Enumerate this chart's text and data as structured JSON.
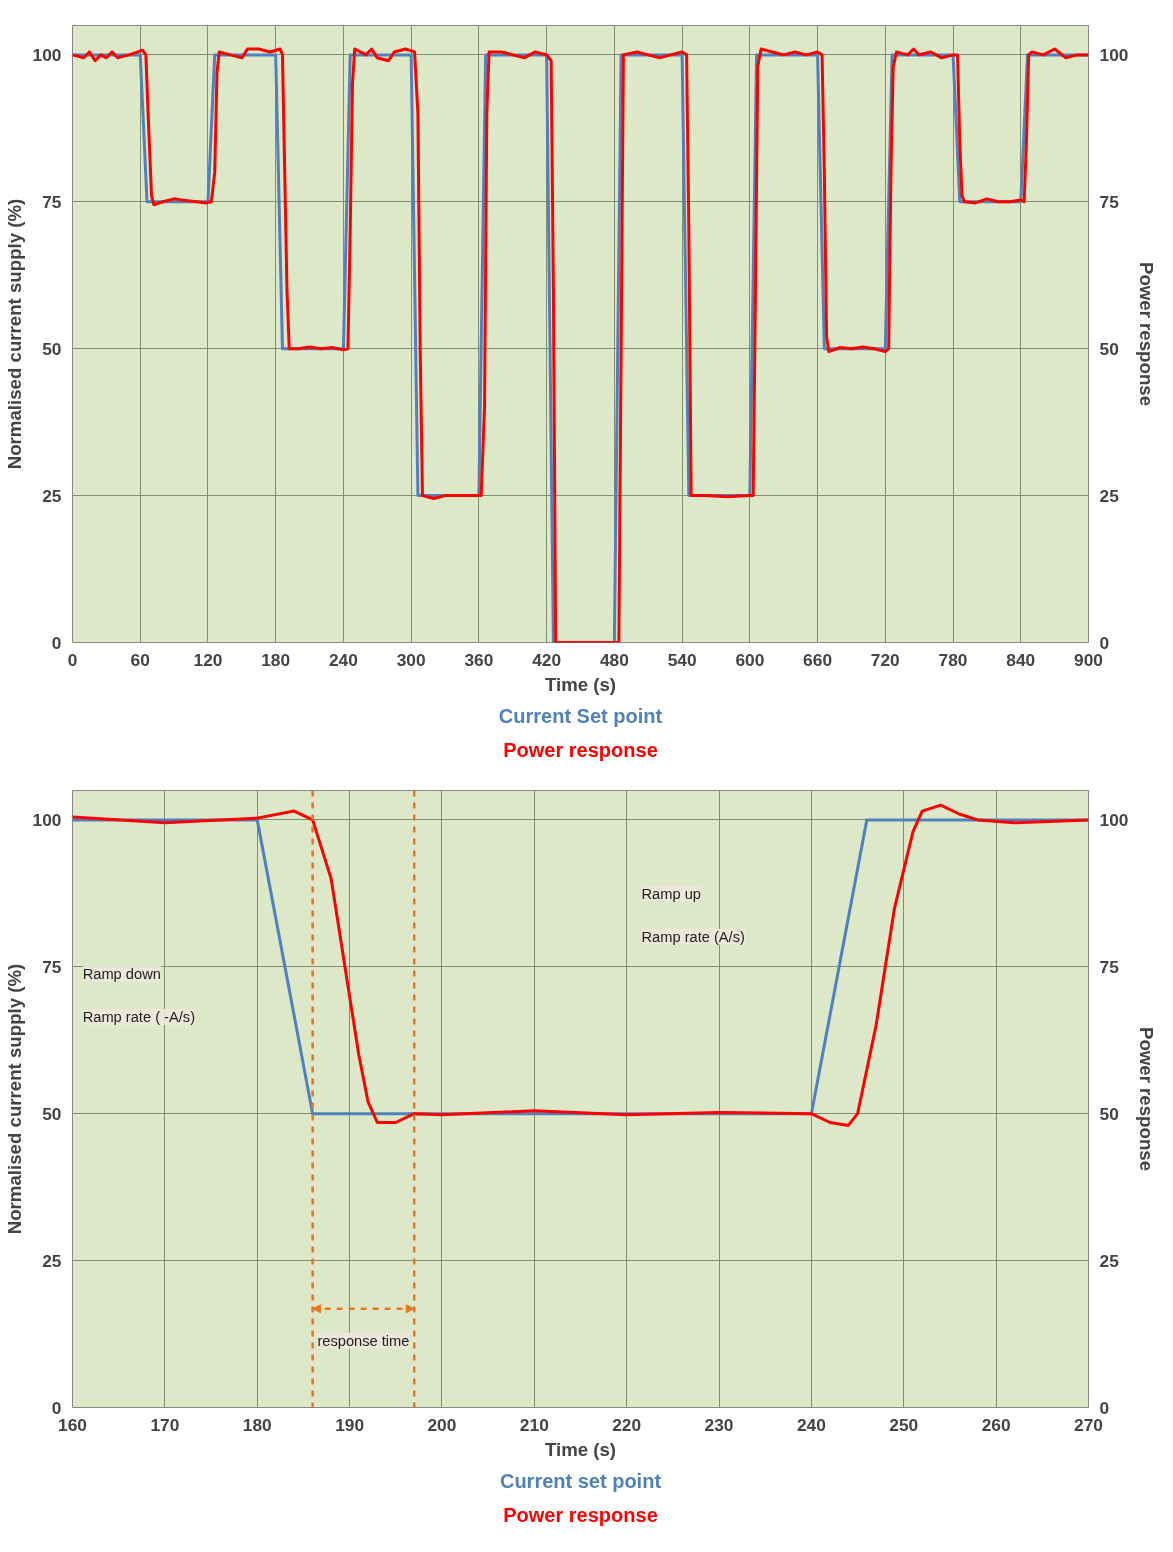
{
  "chart_data": [
    {
      "type": "line",
      "xlabel": "Time (s)",
      "ylabel": "Normalised current supply (%)",
      "y2label": "Power response",
      "xlim": [
        0,
        900
      ],
      "xticks": [
        0,
        60,
        120,
        180,
        240,
        300,
        360,
        420,
        480,
        540,
        600,
        660,
        720,
        780,
        840,
        900
      ],
      "ylim": [
        0,
        105
      ],
      "yticks": [
        0,
        25,
        50,
        75,
        100
      ],
      "y2lim": [
        0,
        105
      ],
      "y2ticks": [
        0,
        25,
        50,
        75,
        100
      ],
      "grid": true,
      "legend": "bottom",
      "marker": "none",
      "line_style": "solid",
      "series": [
        {
          "name": "Current Set point",
          "color": "#4f81bd",
          "x": [
            0,
            60,
            66,
            120,
            126,
            180,
            186,
            240,
            246,
            300,
            306,
            360,
            366,
            420,
            426,
            480,
            486,
            540,
            546,
            600,
            606,
            660,
            666,
            720,
            726,
            780,
            786,
            840,
            846,
            900
          ],
          "values": [
            100,
            100,
            75,
            75,
            100,
            100,
            50,
            50,
            100,
            100,
            25,
            25,
            100,
            100,
            0,
            0,
            100,
            100,
            25,
            25,
            100,
            100,
            50,
            50,
            100,
            100,
            75,
            75,
            100,
            100
          ]
        },
        {
          "name": "Power response",
          "color": "#ff0000",
          "x": [
            0,
            10,
            15,
            20,
            25,
            30,
            35,
            40,
            50,
            58,
            62,
            65,
            67,
            70,
            72,
            80,
            90,
            100,
            110,
            118,
            123,
            126,
            128,
            130,
            140,
            150,
            155,
            165,
            175,
            184,
            186,
            188,
            190,
            192,
            200,
            210,
            220,
            230,
            240,
            244,
            246,
            248,
            250,
            260,
            265,
            270,
            280,
            285,
            295,
            303,
            306,
            308,
            310,
            320,
            330,
            340,
            350,
            362,
            365,
            367,
            369,
            380,
            390,
            400,
            410,
            420,
            424,
            426,
            428,
            440,
            460,
            480,
            484,
            486,
            488,
            500,
            510,
            520,
            530,
            540,
            544,
            546,
            548,
            560,
            580,
            600,
            603,
            605,
            607,
            610,
            620,
            630,
            640,
            650,
            660,
            664,
            666,
            668,
            670,
            680,
            690,
            700,
            710,
            720,
            723,
            725,
            727,
            730,
            740,
            745,
            750,
            760,
            770,
            780,
            784,
            786,
            788,
            790,
            800,
            810,
            820,
            830,
            840,
            843,
            845,
            847,
            850,
            860,
            870,
            880,
            890,
            900
          ],
          "values": [
            100,
            99.5,
            100.5,
            99,
            100,
            99.5,
            100.5,
            99.5,
            100,
            100.5,
            100.8,
            100,
            90,
            76,
            74.5,
            75,
            75.5,
            75.2,
            75,
            74.8,
            75,
            80,
            97,
            100.5,
            100,
            99.5,
            101,
            101,
            100.5,
            101,
            100,
            80,
            60,
            50,
            50,
            50.3,
            50,
            50.2,
            49.8,
            50,
            70,
            95,
            101,
            100,
            101,
            99.5,
            99,
            100.5,
            101,
            100.5,
            90,
            50,
            25,
            24.5,
            25,
            25,
            25,
            25,
            40,
            90,
            100.5,
            100.5,
            100,
            99.5,
            100.5,
            100,
            99,
            60,
            0,
            0,
            0,
            0,
            0,
            50,
            100,
            100.5,
            100,
            99.5,
            100,
            100.5,
            100,
            70,
            25,
            25,
            24.8,
            25,
            25,
            60,
            98,
            101,
            100.5,
            100,
            100.5,
            100,
            100.5,
            100,
            80,
            52,
            49.5,
            50.2,
            50,
            50.3,
            50,
            49.5,
            50,
            80,
            98,
            100.5,
            100,
            101,
            100,
            100.5,
            99.5,
            100,
            100,
            85,
            76,
            75,
            74.8,
            75.5,
            75,
            75,
            75.3,
            75,
            85,
            100,
            100.5,
            100,
            101,
            99.5,
            100,
            100
          ]
        }
      ]
    },
    {
      "type": "line",
      "xlabel": "Time (s)",
      "ylabel": "Normalised current supply (%)",
      "y2label": "Power response",
      "xlim": [
        160,
        270
      ],
      "xticks": [
        160,
        170,
        180,
        190,
        200,
        210,
        220,
        230,
        240,
        250,
        260,
        270
      ],
      "ylim": [
        0,
        105
      ],
      "yticks": [
        0,
        25,
        50,
        75,
        100
      ],
      "y2lim": [
        0,
        105
      ],
      "y2ticks": [
        0,
        25,
        50,
        75,
        100
      ],
      "grid": true,
      "legend": "bottom",
      "marker": "none",
      "line_style": "solid",
      "series": [
        {
          "name": "Current set point",
          "color": "#4f81bd",
          "x": [
            160,
            180,
            186,
            240,
            246,
            270
          ],
          "values": [
            100,
            100,
            50,
            50,
            100,
            100
          ]
        },
        {
          "name": "Power response",
          "color": "#ff0000",
          "x": [
            160,
            170,
            180,
            184,
            186,
            188,
            190,
            191,
            192,
            193,
            195,
            197,
            200,
            210,
            220,
            230,
            240,
            242,
            244,
            245,
            247,
            249,
            251,
            252,
            254,
            256,
            258,
            262,
            270
          ],
          "values": [
            100.5,
            99.5,
            100.3,
            101.5,
            100,
            90,
            70,
            60,
            52,
            48.5,
            48.5,
            50,
            49.8,
            50.5,
            49.8,
            50.2,
            50,
            48.5,
            48,
            50,
            65,
            85,
            98,
            101.5,
            102.5,
            101,
            100,
            99.5,
            100
          ]
        }
      ],
      "ref_lines": [
        {
          "axis": "x",
          "value": 186,
          "label": "response time",
          "color": "#e87722",
          "line_style": "dashed"
        },
        {
          "axis": "x",
          "value": 197,
          "color": "#e87722",
          "line_style": "dashed"
        }
      ],
      "annotations": [
        "Ramp down",
        "Ramp rate ( -A/s)",
        "Ramp up",
        "Ramp rate (A/s)"
      ]
    }
  ]
}
